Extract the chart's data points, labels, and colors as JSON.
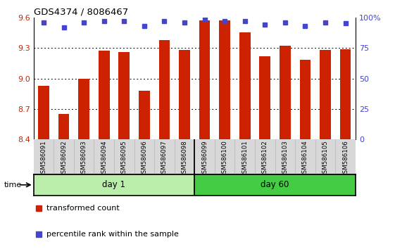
{
  "title": "GDS4374 / 8086467",
  "samples": [
    "GSM586091",
    "GSM586092",
    "GSM586093",
    "GSM586094",
    "GSM586095",
    "GSM586096",
    "GSM586097",
    "GSM586098",
    "GSM586099",
    "GSM586100",
    "GSM586101",
    "GSM586102",
    "GSM586103",
    "GSM586104",
    "GSM586105",
    "GSM586106"
  ],
  "bar_values": [
    8.93,
    8.65,
    9.0,
    9.27,
    9.26,
    8.88,
    9.38,
    9.28,
    9.57,
    9.57,
    9.45,
    9.22,
    9.32,
    9.18,
    9.28,
    9.29
  ],
  "blue_values": [
    96,
    92,
    96,
    97,
    97,
    93,
    97,
    96,
    99,
    97,
    97,
    94,
    96,
    93,
    96,
    95
  ],
  "day1_samples": 8,
  "day60_samples": 8,
  "ylim_left": [
    8.4,
    9.6
  ],
  "ylim_right": [
    0,
    100
  ],
  "yticks_left": [
    8.4,
    8.7,
    9.0,
    9.3,
    9.6
  ],
  "yticks_right": [
    0,
    25,
    50,
    75,
    100
  ],
  "bar_color": "#cc2200",
  "blue_color": "#4444cc",
  "day1_color": "#bbeeaa",
  "day60_color": "#44cc44",
  "grid_color": "#000000",
  "bg_color": "#d8d8d8",
  "label_bar": "transformed count",
  "label_blue": "percentile rank within the sample",
  "time_label": "time",
  "day1_label": "day 1",
  "day60_label": "day 60"
}
